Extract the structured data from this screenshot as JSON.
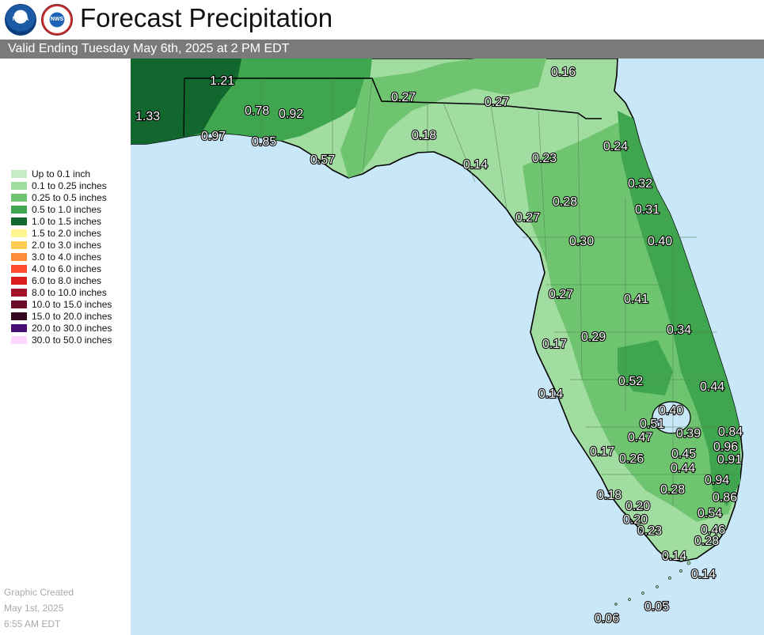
{
  "header": {
    "title": "Forecast Precipitation",
    "valid": "Valid Ending Tuesday May 6th, 2025 at 2 PM EDT",
    "logo_noaa_text": "NOAA",
    "logo_nws_text": "NWS"
  },
  "legend": [
    {
      "label": "Up to 0.1 inch",
      "color": "#c7ebc7"
    },
    {
      "label": "0.1 to 0.25 inches",
      "color": "#a1dca1"
    },
    {
      "label": "0.25 to 0.5 inches",
      "color": "#6fc46f"
    },
    {
      "label": "0.5 to 1.0 inches",
      "color": "#3fa64f"
    },
    {
      "label": "1.0 to 1.5 inches",
      "color": "#12672f"
    },
    {
      "label": "1.5 to 2.0 inches",
      "color": "#fff68f"
    },
    {
      "label": "2.0 to 3.0 inches",
      "color": "#ffcc55"
    },
    {
      "label": "3.0 to 4.0 inches",
      "color": "#ff8c3a"
    },
    {
      "label": "4.0 to 6.0 inches",
      "color": "#ff4a2e"
    },
    {
      "label": "6.0 to 8.0 inches",
      "color": "#d91c1c"
    },
    {
      "label": "8.0 to 10.0 inches",
      "color": "#a4102a"
    },
    {
      "label": "10.0 to 15.0 inches",
      "color": "#6b0a27"
    },
    {
      "label": "15.0 to 20.0 inches",
      "color": "#33061f"
    },
    {
      "label": "20.0 to 30.0 inches",
      "color": "#4a0d73"
    },
    {
      "label": "30.0 to 50.0 inches",
      "color": "#ffd6ff"
    }
  ],
  "footer": {
    "line1": "Graphic Created",
    "line2": "May 1st, 2025",
    "line3": "6:55 AM EDT"
  },
  "map": {
    "water_color": "#c8e8fa",
    "amounts": [
      "1.21",
      "1.33",
      "0.78",
      "0.92",
      "0.97",
      "0.85",
      "0.57",
      "0.27",
      "0.27",
      "0.16",
      "0.18",
      "0.14",
      "0.23",
      "0.24",
      "0.32",
      "0.28",
      "0.27",
      "0.31",
      "0.40",
      "0.30",
      "0.27",
      "0.41",
      "0.34",
      "0.17",
      "0.29",
      "0.52",
      "0.44",
      "0.14",
      "0.40",
      "0.51",
      "0.39",
      "0.84",
      "0.47",
      "0.96",
      "0.45",
      "0.91",
      "0.17",
      "0.26",
      "0.44",
      "0.94",
      "0.28",
      "0.18",
      "0.86",
      "0.20",
      "0.54",
      "0.20",
      "0.46",
      "0.23",
      "0.28",
      "0.14",
      "0.14",
      "0.05",
      "0.06"
    ]
  }
}
